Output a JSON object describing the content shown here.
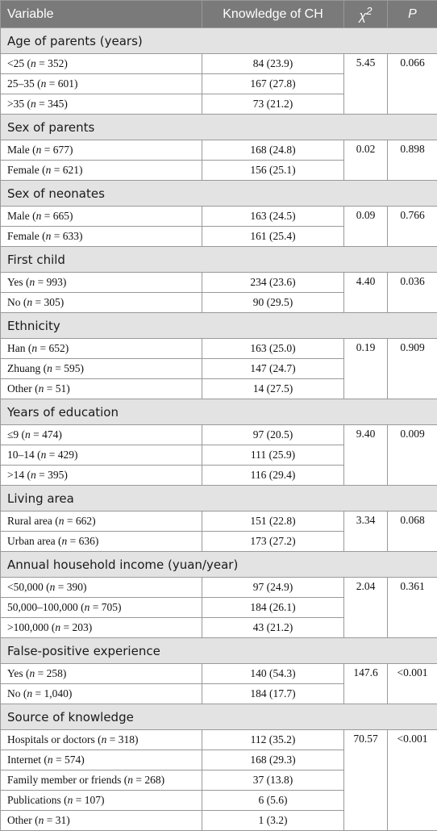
{
  "table": {
    "headers": {
      "variable": "Variable",
      "knowledge": "Knowledge of CH",
      "chi": "χ",
      "chi_sup": "2",
      "p": "P"
    },
    "groups": [
      {
        "title": "Age of parents (years)",
        "chi2": "5.45",
        "p": "0.066",
        "rows": [
          [
            "<25 (",
            "352",
            ")",
            "84 (23.9)"
          ],
          [
            "25–35 (",
            "601",
            ")",
            "167 (27.8)"
          ],
          [
            ">35 (",
            "345",
            ")",
            "73 (21.2)"
          ]
        ]
      },
      {
        "title": "Sex of parents",
        "chi2": "0.02",
        "p": "0.898",
        "rows": [
          [
            "Male (",
            "677",
            ")",
            "168 (24.8)"
          ],
          [
            "Female (",
            "621",
            ")",
            "156 (25.1)"
          ]
        ]
      },
      {
        "title": "Sex of neonates",
        "chi2": "0.09",
        "p": "0.766",
        "rows": [
          [
            "Male (",
            "665",
            ")",
            "163 (24.5)"
          ],
          [
            "Female (",
            "633",
            ")",
            "161 (25.4)"
          ]
        ]
      },
      {
        "title": "First child",
        "chi2": "4.40",
        "p": "0.036",
        "rows": [
          [
            "Yes (",
            "993",
            ")",
            "234 (23.6)"
          ],
          [
            "No (",
            "305",
            ")",
            "90 (29.5)"
          ]
        ]
      },
      {
        "title": "Ethnicity",
        "chi2": "0.19",
        "p": "0.909",
        "rows": [
          [
            "Han (",
            "652",
            ")",
            "163 (25.0)"
          ],
          [
            "Zhuang (",
            "595",
            ")",
            "147 (24.7)"
          ],
          [
            "Other (",
            "51",
            ")",
            "14 (27.5)"
          ]
        ]
      },
      {
        "title": "Years of education",
        "chi2": "9.40",
        "p": "0.009",
        "rows": [
          [
            "≤9 (",
            "474",
            ")",
            "97 (20.5)"
          ],
          [
            "10–14 (",
            "429",
            ")",
            "111 (25.9)"
          ],
          [
            ">14 (",
            "395",
            ")",
            "116 (29.4)"
          ]
        ]
      },
      {
        "title": "Living area",
        "chi2": "3.34",
        "p": "0.068",
        "rows": [
          [
            "Rural area (",
            "662",
            ")",
            "151 (22.8)"
          ],
          [
            "Urban area (",
            "636",
            ")",
            "173 (27.2)"
          ]
        ]
      },
      {
        "title": "Annual household income (yuan/year)",
        "chi2": "2.04",
        "p": "0.361",
        "rows": [
          [
            "<50,000 (",
            "390",
            ")",
            "97 (24.9)"
          ],
          [
            "50,000–100,000 (",
            "705",
            ")",
            "184 (26.1)"
          ],
          [
            ">100,000 (",
            "203",
            ")",
            "43 (21.2)"
          ]
        ]
      },
      {
        "title": "False-positive experience",
        "chi2": "147.6",
        "p": "<0.001",
        "rows": [
          [
            "Yes (",
            "258",
            ")",
            "140 (54.3)"
          ],
          [
            "No (",
            "1,040",
            ")",
            "184 (17.7)"
          ]
        ]
      },
      {
        "title": "Source of knowledge",
        "chi2": "70.57",
        "p": "<0.001",
        "rows": [
          [
            "Hospitals or doctors (",
            "318",
            ")",
            "112 (35.2)"
          ],
          [
            "Internet (",
            "574",
            ")",
            "168 (29.3)"
          ],
          [
            "Family member or friends (",
            "268",
            ")",
            "37 (13.8)"
          ],
          [
            "Publications (",
            "107",
            ")",
            "6 (5.6)"
          ],
          [
            "Other (",
            "31",
            ")",
            "1 (3.2)"
          ]
        ]
      }
    ]
  }
}
